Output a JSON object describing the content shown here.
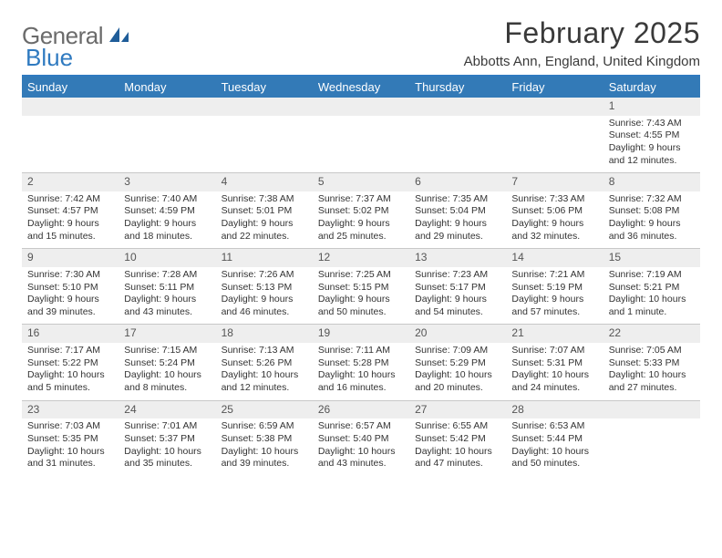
{
  "brand": {
    "text_general": "General",
    "text_blue": "Blue",
    "icon_color": "#1f5d99"
  },
  "header": {
    "title": "February 2025",
    "subtitle": "Abbotts Ann, England, United Kingdom"
  },
  "colors": {
    "header_bar": "#337ab7",
    "header_text": "#ffffff",
    "daynum_bg": "#eeeeee",
    "body_text": "#333333",
    "accent_line": "#2f7ac0",
    "row_divider": "#c8c8c8"
  },
  "weekdays": [
    "Sunday",
    "Monday",
    "Tuesday",
    "Wednesday",
    "Thursday",
    "Friday",
    "Saturday"
  ],
  "weeks": [
    [
      {
        "n": "",
        "sr": "",
        "ss": "",
        "dl": ""
      },
      {
        "n": "",
        "sr": "",
        "ss": "",
        "dl": ""
      },
      {
        "n": "",
        "sr": "",
        "ss": "",
        "dl": ""
      },
      {
        "n": "",
        "sr": "",
        "ss": "",
        "dl": ""
      },
      {
        "n": "",
        "sr": "",
        "ss": "",
        "dl": ""
      },
      {
        "n": "",
        "sr": "",
        "ss": "",
        "dl": ""
      },
      {
        "n": "1",
        "sr": "Sunrise: 7:43 AM",
        "ss": "Sunset: 4:55 PM",
        "dl": "Daylight: 9 hours and 12 minutes."
      }
    ],
    [
      {
        "n": "2",
        "sr": "Sunrise: 7:42 AM",
        "ss": "Sunset: 4:57 PM",
        "dl": "Daylight: 9 hours and 15 minutes."
      },
      {
        "n": "3",
        "sr": "Sunrise: 7:40 AM",
        "ss": "Sunset: 4:59 PM",
        "dl": "Daylight: 9 hours and 18 minutes."
      },
      {
        "n": "4",
        "sr": "Sunrise: 7:38 AM",
        "ss": "Sunset: 5:01 PM",
        "dl": "Daylight: 9 hours and 22 minutes."
      },
      {
        "n": "5",
        "sr": "Sunrise: 7:37 AM",
        "ss": "Sunset: 5:02 PM",
        "dl": "Daylight: 9 hours and 25 minutes."
      },
      {
        "n": "6",
        "sr": "Sunrise: 7:35 AM",
        "ss": "Sunset: 5:04 PM",
        "dl": "Daylight: 9 hours and 29 minutes."
      },
      {
        "n": "7",
        "sr": "Sunrise: 7:33 AM",
        "ss": "Sunset: 5:06 PM",
        "dl": "Daylight: 9 hours and 32 minutes."
      },
      {
        "n": "8",
        "sr": "Sunrise: 7:32 AM",
        "ss": "Sunset: 5:08 PM",
        "dl": "Daylight: 9 hours and 36 minutes."
      }
    ],
    [
      {
        "n": "9",
        "sr": "Sunrise: 7:30 AM",
        "ss": "Sunset: 5:10 PM",
        "dl": "Daylight: 9 hours and 39 minutes."
      },
      {
        "n": "10",
        "sr": "Sunrise: 7:28 AM",
        "ss": "Sunset: 5:11 PM",
        "dl": "Daylight: 9 hours and 43 minutes."
      },
      {
        "n": "11",
        "sr": "Sunrise: 7:26 AM",
        "ss": "Sunset: 5:13 PM",
        "dl": "Daylight: 9 hours and 46 minutes."
      },
      {
        "n": "12",
        "sr": "Sunrise: 7:25 AM",
        "ss": "Sunset: 5:15 PM",
        "dl": "Daylight: 9 hours and 50 minutes."
      },
      {
        "n": "13",
        "sr": "Sunrise: 7:23 AM",
        "ss": "Sunset: 5:17 PM",
        "dl": "Daylight: 9 hours and 54 minutes."
      },
      {
        "n": "14",
        "sr": "Sunrise: 7:21 AM",
        "ss": "Sunset: 5:19 PM",
        "dl": "Daylight: 9 hours and 57 minutes."
      },
      {
        "n": "15",
        "sr": "Sunrise: 7:19 AM",
        "ss": "Sunset: 5:21 PM",
        "dl": "Daylight: 10 hours and 1 minute."
      }
    ],
    [
      {
        "n": "16",
        "sr": "Sunrise: 7:17 AM",
        "ss": "Sunset: 5:22 PM",
        "dl": "Daylight: 10 hours and 5 minutes."
      },
      {
        "n": "17",
        "sr": "Sunrise: 7:15 AM",
        "ss": "Sunset: 5:24 PM",
        "dl": "Daylight: 10 hours and 8 minutes."
      },
      {
        "n": "18",
        "sr": "Sunrise: 7:13 AM",
        "ss": "Sunset: 5:26 PM",
        "dl": "Daylight: 10 hours and 12 minutes."
      },
      {
        "n": "19",
        "sr": "Sunrise: 7:11 AM",
        "ss": "Sunset: 5:28 PM",
        "dl": "Daylight: 10 hours and 16 minutes."
      },
      {
        "n": "20",
        "sr": "Sunrise: 7:09 AM",
        "ss": "Sunset: 5:29 PM",
        "dl": "Daylight: 10 hours and 20 minutes."
      },
      {
        "n": "21",
        "sr": "Sunrise: 7:07 AM",
        "ss": "Sunset: 5:31 PM",
        "dl": "Daylight: 10 hours and 24 minutes."
      },
      {
        "n": "22",
        "sr": "Sunrise: 7:05 AM",
        "ss": "Sunset: 5:33 PM",
        "dl": "Daylight: 10 hours and 27 minutes."
      }
    ],
    [
      {
        "n": "23",
        "sr": "Sunrise: 7:03 AM",
        "ss": "Sunset: 5:35 PM",
        "dl": "Daylight: 10 hours and 31 minutes."
      },
      {
        "n": "24",
        "sr": "Sunrise: 7:01 AM",
        "ss": "Sunset: 5:37 PM",
        "dl": "Daylight: 10 hours and 35 minutes."
      },
      {
        "n": "25",
        "sr": "Sunrise: 6:59 AM",
        "ss": "Sunset: 5:38 PM",
        "dl": "Daylight: 10 hours and 39 minutes."
      },
      {
        "n": "26",
        "sr": "Sunrise: 6:57 AM",
        "ss": "Sunset: 5:40 PM",
        "dl": "Daylight: 10 hours and 43 minutes."
      },
      {
        "n": "27",
        "sr": "Sunrise: 6:55 AM",
        "ss": "Sunset: 5:42 PM",
        "dl": "Daylight: 10 hours and 47 minutes."
      },
      {
        "n": "28",
        "sr": "Sunrise: 6:53 AM",
        "ss": "Sunset: 5:44 PM",
        "dl": "Daylight: 10 hours and 50 minutes."
      },
      {
        "n": "",
        "sr": "",
        "ss": "",
        "dl": ""
      }
    ]
  ]
}
